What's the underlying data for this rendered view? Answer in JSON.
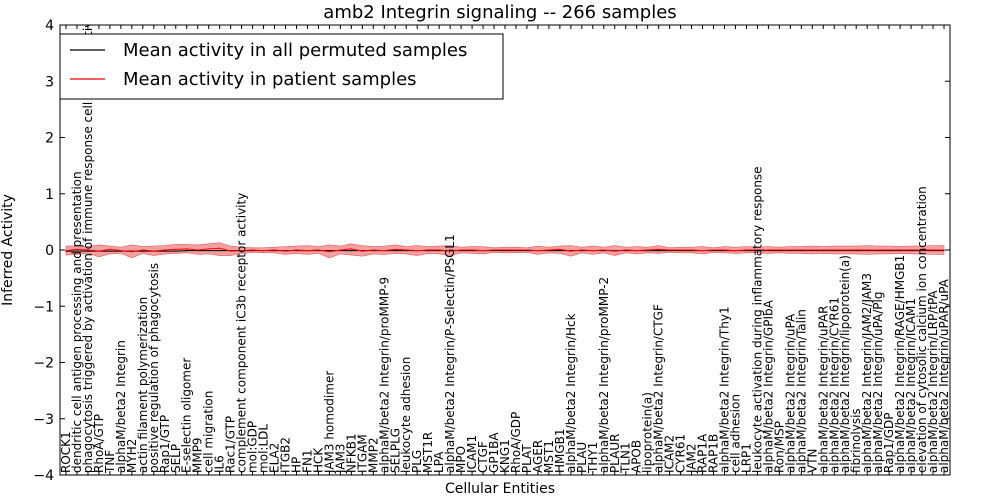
{
  "chart_data": {
    "type": "line",
    "title": "amb2 Integrin signaling -- 266 samples",
    "xlabel": "Cellular Entities",
    "ylabel": "Inferred Activity",
    "ylim": [
      -4,
      4
    ],
    "yticks": [
      -4,
      -3,
      -2,
      -1,
      0,
      1,
      2,
      3,
      4
    ],
    "grid": false,
    "legend_position": "top-left",
    "categories": [
      "ROCK1",
      "dendritic cell antigen processing and presentation",
      "phagocytosis triggered by activation of immune response cell surface activating receptor",
      "RhoA/GTP",
      "TNF",
      "alphaM/beta2 Integrin",
      "MYH2",
      "actin filament polymerization",
      "positive regulation of phagocytosis",
      "Rap1/GTP",
      "SELP",
      "E-selectin oligomer",
      "MMP9",
      "cell migration",
      "IL6",
      "Rac1/GTP",
      "complement component iC3b receptor activity",
      "mol:GDP",
      "mol:LDL",
      "ELA2",
      "ITGB2",
      "HP",
      "FN1",
      "HCK",
      "JAM3 homodimer",
      "JAM3",
      "NFKB1",
      "ITGAM",
      "MMP2",
      "alphaM/beta2 Integrin/proMMP-9",
      "SELPLG",
      "leukocyte adhesion",
      "PLG",
      "MST1R",
      "LPA",
      "alphaM/beta2 Integrin/P-Selectin/PSGL1",
      "MPO",
      "ICAM1",
      "CTGF",
      "GP1BA",
      "KNG1",
      "RhoA/GDP",
      "PLAT",
      "AGER",
      "MST1",
      "HMGB1",
      "alphaM/beta2 Integrin/Hck",
      "PLAU",
      "THY1",
      "alphaM/beta2 Integrin/proMMP-2",
      "PLAUR",
      "TLN1",
      "APOB",
      "lipoprotein(a)",
      "alphaM/beta2 Integrin/CTGF",
      "ICAM2",
      "CYR61",
      "JAM2",
      "RAP1A",
      "RAP1B",
      "alphaM/beta2 Integrin/Thy1",
      "cell adhesion",
      "LRP1",
      "leukocyte activation during inflammatory response",
      "alphaM/beta2 Integrin/GPIbA",
      "Ron/MSP",
      "alphaM/beta2 Integrin/uPA",
      "alphaM/beta2 Integrin/Talin",
      "VTN",
      "alphaM/beta2 Integrin/uPAR",
      "alphaM/beta2 Integrin/CYR61",
      "alphaM/beta2 Integrin/lipoprotein(a)",
      "fibrinolysis",
      "alphaM/beta2 Integrin/JAM2/JAM3",
      "alphaM/beta2 Integrin/uPA/Plg",
      "Rap1/GDP",
      "alphaM/beta2 Integrin/RAGE/HMGB1",
      "alphaM/beta2 Integrin/ICAM1",
      "elevation of cytosolic calcium ion concentration",
      "alphaM/beta2 Integrin/LRP/tPA",
      "alphaM/beta2 Integrin/uPAR/uPA"
    ],
    "series": [
      {
        "name": "Mean activity in all permuted samples",
        "color": "#000000",
        "values": [
          -0.02,
          -0.02,
          -0.02,
          -0.02,
          -0.02,
          -0.02,
          -0.02,
          -0.02,
          -0.02,
          -0.02,
          -0.02,
          -0.01,
          -0.01,
          -0.01,
          -0.01,
          -0.01,
          -0.01,
          -0.01,
          -0.01,
          -0.01,
          -0.01,
          -0.01,
          -0.01,
          -0.01,
          -0.01,
          -0.01,
          -0.01,
          -0.01,
          -0.01,
          -0.01,
          -0.01,
          -0.01,
          -0.01,
          -0.01,
          -0.01,
          -0.01,
          -0.01,
          -0.01,
          -0.01,
          -0.01,
          -0.01,
          -0.01,
          -0.01,
          -0.01,
          -0.01,
          -0.01,
          -0.01,
          -0.01,
          -0.01,
          -0.01,
          -0.01,
          -0.01,
          -0.01,
          -0.01,
          -0.01,
          -0.01,
          -0.01,
          -0.01,
          -0.01,
          -0.01,
          -0.01,
          -0.01,
          -0.01,
          -0.01,
          -0.01,
          -0.01,
          -0.01,
          -0.01,
          -0.01,
          -0.01,
          -0.01,
          -0.01,
          -0.01,
          -0.01,
          -0.01,
          -0.01,
          -0.01,
          -0.01,
          -0.01,
          -0.01,
          -0.01
        ]
      },
      {
        "name": "Mean activity in patient samples",
        "color": "#ff0000",
        "values": [
          -0.01,
          0.01,
          0.0,
          -0.02,
          0.01,
          -0.01,
          -0.03,
          0.0,
          -0.02,
          0.0,
          0.01,
          0.02,
          0.0,
          0.02,
          0.03,
          -0.02,
          -0.01,
          0.0,
          -0.01,
          0.0,
          -0.02,
          0.0,
          -0.01,
          0.0,
          -0.03,
          0.0,
          0.02,
          -0.02,
          0.0,
          -0.01,
          0.01,
          0.0,
          -0.01,
          0.0,
          0.0,
          -0.02,
          0.0,
          0.0,
          -0.01,
          0.0,
          0.0,
          0.0,
          0.0,
          -0.01,
          0.0,
          0.01,
          -0.02,
          0.0,
          -0.01,
          0.0,
          -0.02,
          0.0,
          -0.01,
          0.0,
          0.01,
          0.0,
          0.0,
          0.0,
          -0.01,
          0.0,
          0.0,
          -0.01,
          0.0,
          0.0,
          0.0,
          0.0,
          0.0,
          0.0,
          0.0,
          0.0,
          0.0,
          0.0,
          0.0,
          0.0,
          0.0,
          0.0,
          0.0,
          0.0,
          0.0,
          0.0,
          0.0
        ]
      }
    ],
    "band": {
      "name": "patient samples spread",
      "color": "#f08080",
      "upper": [
        0.07,
        0.07,
        0.06,
        0.09,
        0.07,
        0.05,
        0.09,
        0.06,
        0.07,
        0.08,
        0.1,
        0.1,
        0.09,
        0.11,
        0.13,
        0.07,
        0.05,
        0.04,
        0.04,
        0.05,
        0.06,
        0.07,
        0.08,
        0.06,
        0.09,
        0.07,
        0.11,
        0.08,
        0.06,
        0.07,
        0.09,
        0.06,
        0.08,
        0.06,
        0.07,
        0.08,
        0.05,
        0.06,
        0.06,
        0.04,
        0.05,
        0.05,
        0.04,
        0.07,
        0.05,
        0.07,
        0.08,
        0.05,
        0.07,
        0.05,
        0.08,
        0.05,
        0.06,
        0.05,
        0.08,
        0.04,
        0.05,
        0.05,
        0.06,
        0.04,
        0.06,
        0.05,
        0.06,
        0.05,
        0.06,
        0.05,
        0.06,
        0.06,
        0.07,
        0.06,
        0.07,
        0.07,
        0.07,
        0.08,
        0.07,
        0.07,
        0.06,
        0.07,
        0.07,
        0.08,
        0.08
      ],
      "lower": [
        -0.09,
        -0.08,
        -0.06,
        -0.12,
        -0.07,
        -0.06,
        -0.14,
        -0.06,
        -0.1,
        -0.07,
        -0.06,
        -0.05,
        -0.08,
        -0.07,
        -0.1,
        -0.1,
        -0.06,
        -0.04,
        -0.05,
        -0.05,
        -0.08,
        -0.06,
        -0.08,
        -0.06,
        -0.14,
        -0.07,
        -0.09,
        -0.11,
        -0.07,
        -0.08,
        -0.06,
        -0.07,
        -0.1,
        -0.06,
        -0.07,
        -0.1,
        -0.05,
        -0.06,
        -0.07,
        -0.04,
        -0.05,
        -0.05,
        -0.04,
        -0.08,
        -0.05,
        -0.06,
        -0.11,
        -0.05,
        -0.08,
        -0.05,
        -0.1,
        -0.05,
        -0.07,
        -0.05,
        -0.06,
        -0.04,
        -0.05,
        -0.05,
        -0.07,
        -0.04,
        -0.05,
        -0.06,
        -0.05,
        -0.05,
        -0.06,
        -0.05,
        -0.06,
        -0.06,
        -0.07,
        -0.06,
        -0.07,
        -0.07,
        -0.07,
        -0.08,
        -0.07,
        -0.07,
        -0.06,
        -0.07,
        -0.07,
        -0.08,
        -0.08
      ]
    }
  }
}
